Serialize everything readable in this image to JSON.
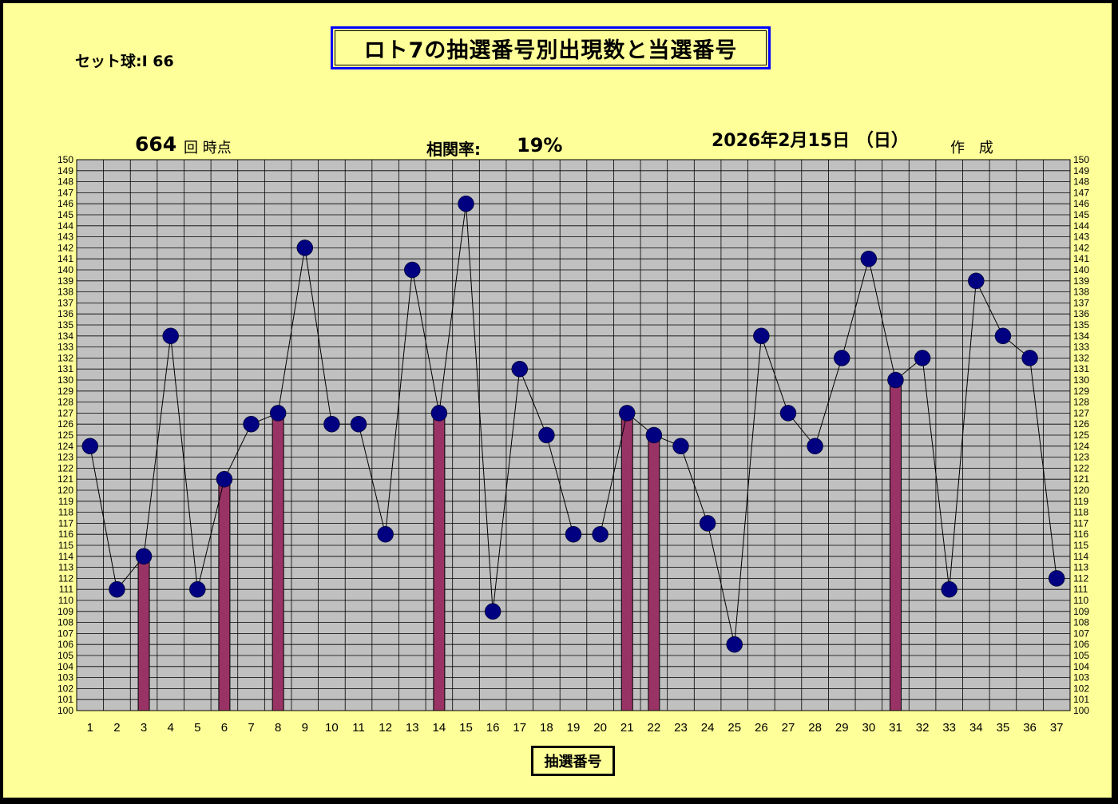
{
  "header": {
    "title": "ロト7の抽選番号別出現数と当選番号",
    "set_ball": "セット球:I 66",
    "draw_count": "664",
    "draw_suffix": "回  時点",
    "corr_label": "相関率:",
    "corr_value": "19%",
    "date": "2026年2月15日 （日）",
    "created": "作 成"
  },
  "chart_data": {
    "type": "line",
    "xlabel": "抽選番号",
    "ylim": [
      100,
      150
    ],
    "y_tick_step": 1,
    "categories": [
      "1",
      "2",
      "3",
      "4",
      "5",
      "6",
      "7",
      "8",
      "9",
      "10",
      "11",
      "12",
      "13",
      "14",
      "15",
      "16",
      "17",
      "18",
      "19",
      "20",
      "21",
      "22",
      "23",
      "24",
      "25",
      "26",
      "27",
      "28",
      "29",
      "30",
      "31",
      "32",
      "33",
      "34",
      "35",
      "36",
      "37"
    ],
    "series": [
      {
        "values": [
          124,
          111,
          114,
          134,
          111,
          121,
          126,
          127,
          142,
          126,
          126,
          116,
          140,
          127,
          146,
          109,
          131,
          125,
          116,
          116,
          127,
          125,
          124,
          117,
          106,
          134,
          127,
          124,
          132,
          141,
          130,
          132,
          111,
          139,
          134,
          132,
          112
        ]
      }
    ],
    "winning_numbers": [
      "3",
      "6",
      "8",
      "14",
      "21",
      "22",
      "31"
    ],
    "grid": true,
    "colors": {
      "plot_bg": "#c0c0c0",
      "marker": "#000080",
      "bar": "#993366",
      "line": "#000000",
      "background": "#ffff99"
    }
  }
}
